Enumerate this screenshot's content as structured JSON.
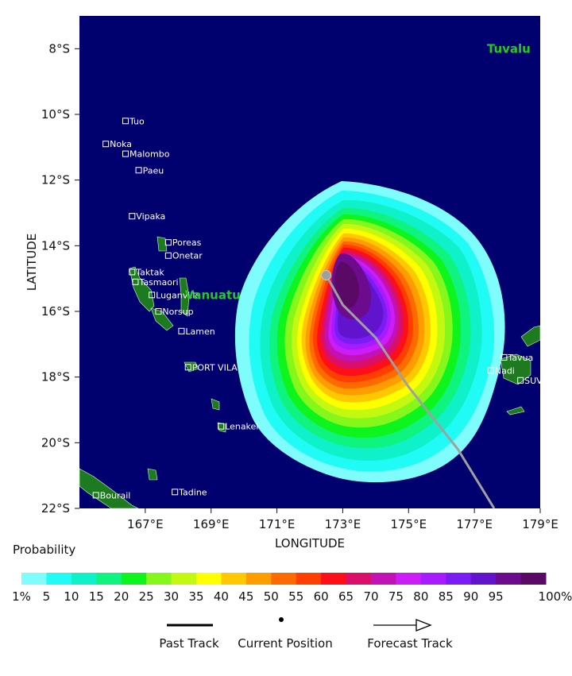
{
  "map": {
    "axis_x_label": "LONGITUDE",
    "axis_y_label": "LATITUDE",
    "lon_ticks": [
      "167°E",
      "169°E",
      "171°E",
      "173°E",
      "175°E",
      "177°E",
      "179°E"
    ],
    "lat_ticks": [
      "8°S",
      "10°S",
      "12°S",
      "14°S",
      "16°S",
      "18°S",
      "20°S",
      "22°S"
    ],
    "lon_range": [
      165.0,
      179.0
    ],
    "lat_range": [
      -22.0,
      -7.0
    ],
    "colors": {
      "ocean": "#00006e",
      "land": "#1e7a1e",
      "track": "#a0a0a0",
      "label": "#ffffff",
      "country_label": "#1fcc1f"
    },
    "countries": [
      {
        "name": "Tuvalu",
        "lon": 178.9,
        "lat": -8.0
      },
      {
        "name": "Vanuatu",
        "lon": 168.2,
        "lat": -15.5
      }
    ],
    "places": [
      {
        "name": "Tuo",
        "lon": 166.4,
        "lat": -10.2
      },
      {
        "name": "Noka",
        "lon": 165.8,
        "lat": -10.9
      },
      {
        "name": "Malombo",
        "lon": 166.4,
        "lat": -11.2
      },
      {
        "name": "Paeu",
        "lon": 166.8,
        "lat": -11.7
      },
      {
        "name": "Vipaka",
        "lon": 166.6,
        "lat": -13.1
      },
      {
        "name": "Poreas",
        "lon": 167.7,
        "lat": -13.9
      },
      {
        "name": "Onetar",
        "lon": 167.7,
        "lat": -14.3
      },
      {
        "name": "Taktak",
        "lon": 166.6,
        "lat": -14.8
      },
      {
        "name": "Tasmaori",
        "lon": 166.7,
        "lat": -15.1
      },
      {
        "name": "Luganville",
        "lon": 167.2,
        "lat": -15.5
      },
      {
        "name": "Norsup",
        "lon": 167.4,
        "lat": -16.0
      },
      {
        "name": "Lamen",
        "lon": 168.1,
        "lat": -16.6
      },
      {
        "name": "PORT VILA",
        "lon": 168.3,
        "lat": -17.7
      },
      {
        "name": "Lenakel",
        "lon": 169.3,
        "lat": -19.5
      },
      {
        "name": "Bourail",
        "lon": 165.5,
        "lat": -21.6
      },
      {
        "name": "Tadine",
        "lon": 167.9,
        "lat": -21.5
      },
      {
        "name": "Tavua",
        "lon": 177.9,
        "lat": -17.4
      },
      {
        "name": "Nadi",
        "lon": 177.5,
        "lat": -17.8
      },
      {
        "name": "SUVA",
        "lon": 178.4,
        "lat": -18.1
      }
    ],
    "current_position": {
      "lon": 172.5,
      "lat": -14.9
    },
    "forecast_track": [
      {
        "lon": 172.5,
        "lat": -14.9
      },
      {
        "lon": 173.0,
        "lat": -15.8
      },
      {
        "lon": 174.0,
        "lat": -16.8
      },
      {
        "lon": 175.0,
        "lat": -18.3
      },
      {
        "lon": 176.5,
        "lat": -20.2
      },
      {
        "lon": 177.6,
        "lat": -22.0
      }
    ]
  },
  "legend": {
    "title": "Probability",
    "bins": [
      {
        "label": "1%",
        "color": "#7ffdfd"
      },
      {
        "label": "5",
        "color": "#20fbf5"
      },
      {
        "label": "10",
        "color": "#0ff1c8"
      },
      {
        "label": "15",
        "color": "#0ff47e"
      },
      {
        "label": "20",
        "color": "#0ef51e"
      },
      {
        "label": "25",
        "color": "#86f71b"
      },
      {
        "label": "30",
        "color": "#c3f811"
      },
      {
        "label": "35",
        "color": "#ffff00"
      },
      {
        "label": "40",
        "color": "#ffc800"
      },
      {
        "label": "45",
        "color": "#ff9d00"
      },
      {
        "label": "50",
        "color": "#ff6a00"
      },
      {
        "label": "55",
        "color": "#ff3e00"
      },
      {
        "label": "60",
        "color": "#fd0f1a"
      },
      {
        "label": "65",
        "color": "#da0f6a"
      },
      {
        "label": "70",
        "color": "#c211b5"
      },
      {
        "label": "75",
        "color": "#cc1df8"
      },
      {
        "label": "80",
        "color": "#a91bff"
      },
      {
        "label": "85",
        "color": "#7a1df4"
      },
      {
        "label": "90",
        "color": "#6113ce"
      },
      {
        "label": "95",
        "color": "#6d0b8f"
      },
      {
        "label": "",
        "color": "#5a0a66"
      }
    ],
    "end_label": "100%",
    "past_track": "Past Track",
    "current_position": "Current Position",
    "forecast_track": "Forecast Track"
  }
}
